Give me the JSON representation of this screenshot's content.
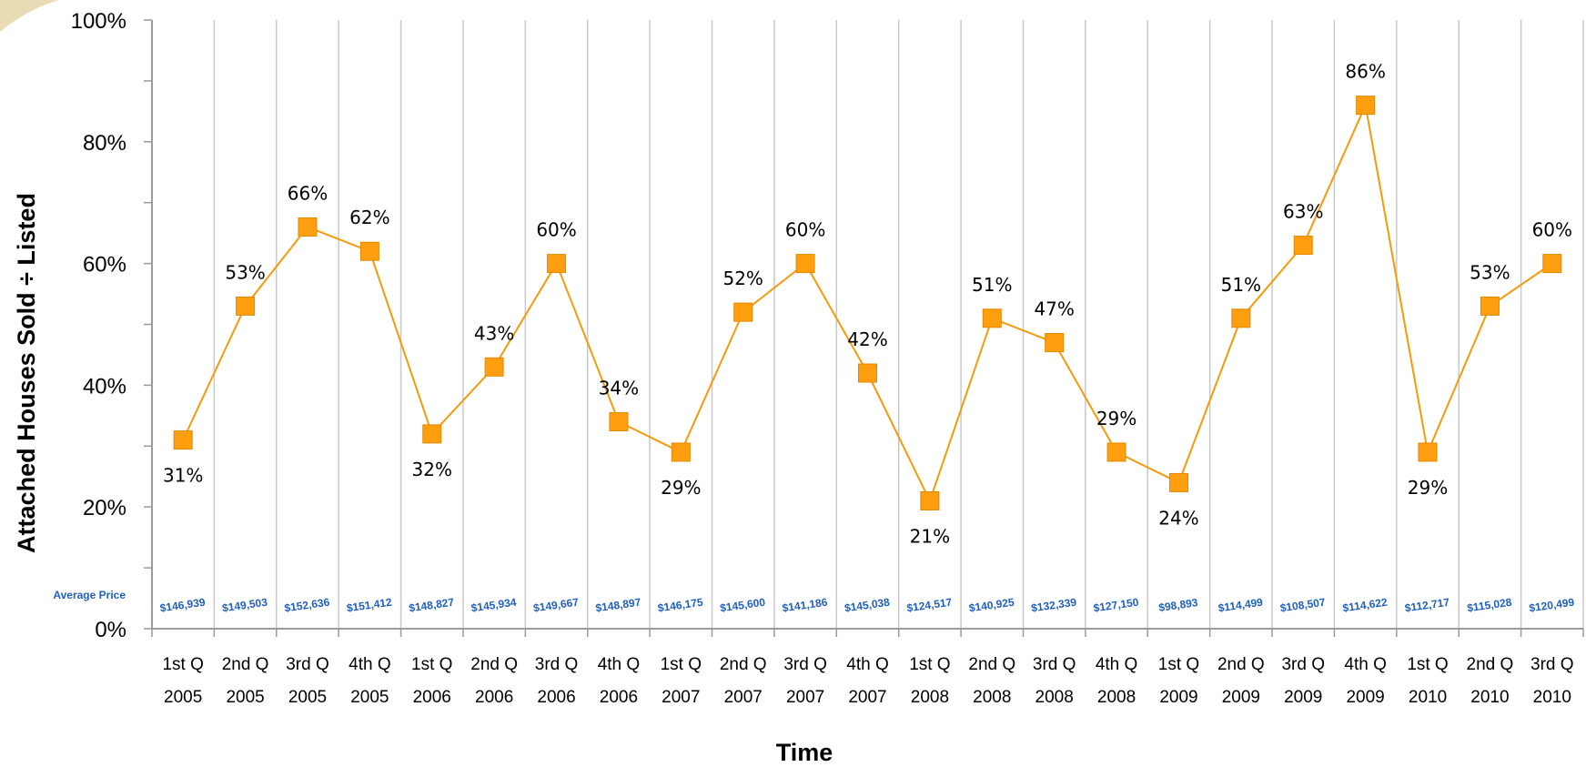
{
  "chart_data": {
    "type": "line",
    "title": "",
    "xlabel": "Time",
    "ylabel": "Attached Houses Sold ÷ Listed",
    "ylim": [
      0,
      100
    ],
    "y_ticks": [
      "0%",
      "20%",
      "40%",
      "60%",
      "80%",
      "100%"
    ],
    "grid": "vertical",
    "categories": [
      [
        "1st Q",
        "2005"
      ],
      [
        "2nd Q",
        "2005"
      ],
      [
        "3rd Q",
        "2005"
      ],
      [
        "4th Q",
        "2005"
      ],
      [
        "1st Q",
        "2006"
      ],
      [
        "2nd Q",
        "2006"
      ],
      [
        "3rd Q",
        "2006"
      ],
      [
        "4th Q",
        "2006"
      ],
      [
        "1st Q",
        "2007"
      ],
      [
        "2nd Q",
        "2007"
      ],
      [
        "3rd Q",
        "2007"
      ],
      [
        "4th Q",
        "2007"
      ],
      [
        "1st Q",
        "2008"
      ],
      [
        "2nd Q",
        "2008"
      ],
      [
        "3rd Q",
        "2008"
      ],
      [
        "4th Q",
        "2008"
      ],
      [
        "1st Q",
        "2009"
      ],
      [
        "2nd Q",
        "2009"
      ],
      [
        "3rd Q",
        "2009"
      ],
      [
        "4th Q",
        "2009"
      ],
      [
        "1st Q",
        "2010"
      ],
      [
        "2nd Q",
        "2010"
      ],
      [
        "3rd Q",
        "2010"
      ]
    ],
    "series": [
      {
        "values": [
          31,
          53,
          66,
          62,
          32,
          43,
          60,
          34,
          29,
          52,
          60,
          42,
          21,
          51,
          47,
          29,
          24,
          51,
          63,
          86,
          29,
          53,
          60
        ],
        "data_labels": [
          "31%",
          "53%",
          "66%",
          "62%",
          "32%",
          "43%",
          "60%",
          "34%",
          "29%",
          "52%",
          "60%",
          "42%",
          "21%",
          "51%",
          "47%",
          "29%",
          "24%",
          "51%",
          "63%",
          "86%",
          "29%",
          "53%",
          "60%"
        ],
        "color": "#f59a0a"
      }
    ],
    "price_row_label": "Average Price",
    "average_prices": [
      "$146,939",
      "$149,503",
      "$152,636",
      "$151,412",
      "$148,827",
      "$145,934",
      "$149,667",
      "$148,897",
      "$146,175",
      "$145,600",
      "$141,186",
      "$145,038",
      "$124,517",
      "$140,925",
      "$132,339",
      "$127,150",
      "$98,893",
      "$114,499",
      "$108,507",
      "$114,622",
      "$112,717",
      "$115,028",
      "$120,499"
    ],
    "colors": {
      "line": "#f59a0a",
      "marker": "#ff9e0f",
      "price_text": "#1f5fbf",
      "grid": "#c8c8c8",
      "axis": "#9a9a9a"
    }
  }
}
